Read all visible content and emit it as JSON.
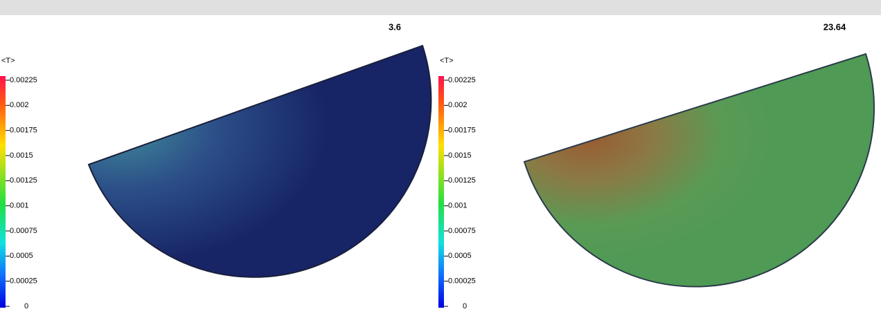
{
  "panels": [
    {
      "time": "3.6",
      "legend": {
        "title": "<T>",
        "ticks": [
          "0.00225",
          "0.002",
          "0.00175",
          "0.0015",
          "0.00125",
          "0.001",
          "0.00075",
          "0.0005",
          "0.00025",
          "0"
        ]
      }
    },
    {
      "time": "23.64",
      "legend": {
        "title": "<T>",
        "ticks": [
          "0.00225",
          "0.002",
          "0.00175",
          "0.0015",
          "0.00125",
          "0.001",
          "0.00075",
          "0.0005",
          "0.00025",
          "0"
        ]
      }
    }
  ]
}
